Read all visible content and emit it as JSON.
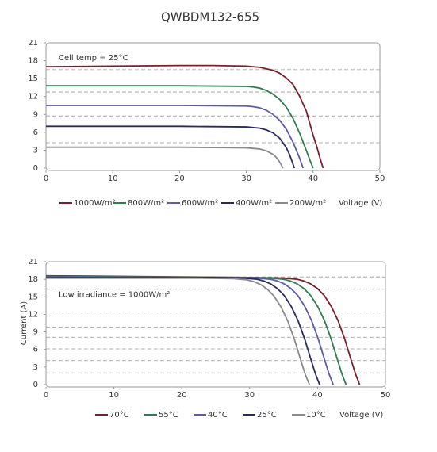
{
  "chart_data": [
    {
      "type": "line",
      "title": "QWBDM132-655",
      "annotation": "Cell temp = 25°C",
      "x_label": "Voltage (V)",
      "xlim": [
        0,
        50
      ],
      "xticks": [
        0,
        10,
        20,
        30,
        40,
        50
      ],
      "ylim": [
        0,
        21
      ],
      "yticks": [
        0,
        3,
        6,
        9,
        12,
        15,
        18,
        21
      ],
      "dashed_lines": [
        16.5,
        12.75,
        8.75,
        4.25
      ],
      "series": [
        {
          "name": "1000W/m²",
          "color": "#7a1f2b",
          "x": [
            0,
            10,
            20,
            25,
            30,
            32,
            34,
            35,
            36,
            37,
            38,
            39,
            40,
            40.5,
            41,
            41.5
          ],
          "values": [
            17.0,
            17.1,
            17.2,
            17.2,
            17.1,
            16.9,
            16.4,
            15.9,
            15.1,
            14.0,
            12.0,
            9.5,
            5.5,
            3.8,
            1.8,
            0
          ]
        },
        {
          "name": "800W/m²",
          "color": "#2e7d4f",
          "x": [
            0,
            10,
            20,
            30,
            31,
            32,
            33,
            34,
            35,
            36,
            37,
            38,
            39,
            39.5,
            40
          ],
          "values": [
            13.8,
            13.8,
            13.8,
            13.7,
            13.6,
            13.4,
            13.0,
            12.4,
            11.5,
            10.2,
            8.3,
            5.8,
            2.9,
            1.4,
            0
          ]
        },
        {
          "name": "600W/m²",
          "color": "#5b5ba8",
          "x": [
            0,
            10,
            20,
            30,
            31,
            32,
            33,
            34,
            35,
            36,
            37,
            38,
            38.5
          ],
          "values": [
            10.5,
            10.5,
            10.5,
            10.4,
            10.3,
            10.1,
            9.7,
            9.0,
            8.0,
            6.5,
            4.3,
            1.6,
            0
          ]
        },
        {
          "name": "400W/m²",
          "color": "#2a2a5e",
          "x": [
            0,
            10,
            20,
            30,
            32,
            33,
            34,
            35,
            36,
            36.5,
            37.2
          ],
          "values": [
            7.0,
            7.0,
            7.0,
            6.9,
            6.7,
            6.4,
            5.9,
            5.0,
            3.4,
            2.2,
            0
          ]
        },
        {
          "name": "200W/m²",
          "color": "#8a8a8a",
          "x": [
            0,
            10,
            20,
            30,
            32,
            33,
            34,
            34.5,
            35,
            35.5
          ],
          "values": [
            3.5,
            3.5,
            3.5,
            3.4,
            3.2,
            2.9,
            2.3,
            1.8,
            1.0,
            0
          ]
        }
      ]
    },
    {
      "type": "line",
      "annotation": "Low irradiance = 1000W/m²",
      "x_label": "Voltage (V)",
      "y_label": "Current (A)",
      "xlim": [
        0,
        50
      ],
      "xticks": [
        0,
        10,
        20,
        30,
        40,
        50
      ],
      "ylim": [
        0,
        21
      ],
      "yticks": [
        0,
        3,
        6,
        9,
        12,
        15,
        18,
        21
      ],
      "dashed_lines": [
        18.4,
        16.3,
        11.7,
        9.8,
        8.1,
        6.1,
        4.1,
        2.0
      ],
      "series": [
        {
          "name": "70°C",
          "color": "#7a1f2b",
          "x": [
            0,
            30,
            35,
            37,
            38,
            39,
            40,
            41,
            42,
            43,
            44,
            45,
            45.6,
            46.2
          ],
          "values": [
            18.6,
            18.3,
            18.2,
            18.0,
            17.7,
            17.2,
            16.4,
            15.2,
            13.4,
            11.0,
            7.8,
            4.0,
            1.8,
            0
          ]
        },
        {
          "name": "55°C",
          "color": "#2e7d4f",
          "x": [
            0,
            28,
            33,
            35,
            36,
            37,
            38,
            39,
            40,
            41,
            42,
            43,
            43.6,
            44.2
          ],
          "values": [
            18.5,
            18.3,
            18.2,
            18.0,
            17.7,
            17.2,
            16.4,
            15.2,
            13.4,
            11.0,
            7.8,
            4.0,
            1.8,
            0
          ]
        },
        {
          "name": "40°C",
          "color": "#5b5ba8",
          "x": [
            0,
            26.1,
            31.1,
            33.1,
            34.1,
            35.1,
            36.1,
            37.1,
            38.1,
            39.1,
            40.1,
            41.1,
            41.7,
            42.3
          ],
          "values": [
            18.4,
            18.3,
            18.2,
            18.0,
            17.7,
            17.2,
            16.4,
            15.2,
            13.4,
            11.0,
            7.8,
            4.0,
            1.8,
            0
          ]
        },
        {
          "name": "25°C",
          "color": "#2a2a5e",
          "x": [
            0,
            24.1,
            29.1,
            31.1,
            32.1,
            33.1,
            34.1,
            35.1,
            36.1,
            37.1,
            38.1,
            39.1,
            39.7,
            40.3
          ],
          "values": [
            18.3,
            18.3,
            18.2,
            18.0,
            17.7,
            17.2,
            16.4,
            15.2,
            13.4,
            11.0,
            7.8,
            4.0,
            1.8,
            0
          ]
        },
        {
          "name": "10°C",
          "color": "#8a8a8a",
          "x": [
            0,
            22.6,
            27.6,
            29.6,
            30.6,
            31.6,
            32.6,
            33.6,
            34.6,
            35.6,
            36.6,
            37.6,
            38.2,
            38.8
          ],
          "values": [
            18.2,
            18.2,
            18.1,
            17.9,
            17.6,
            17.1,
            16.3,
            15.1,
            13.3,
            10.9,
            7.7,
            3.9,
            1.7,
            0
          ]
        }
      ]
    }
  ]
}
